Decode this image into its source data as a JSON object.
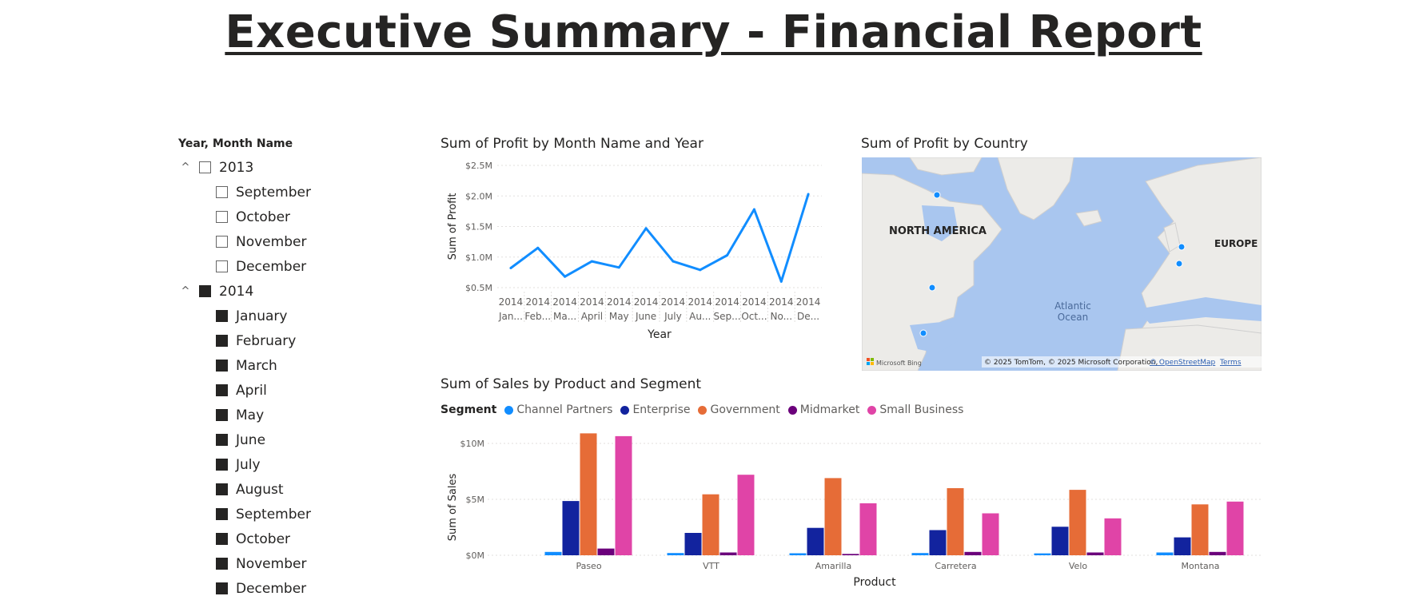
{
  "page": {
    "title": "Executive Summary - Financial Report"
  },
  "slicer": {
    "header": "Year, Month Name",
    "groups": [
      {
        "year": "2013",
        "checked": false,
        "months": [
          "September",
          "October",
          "November",
          "December"
        ]
      },
      {
        "year": "2014",
        "checked": true,
        "months": [
          "January",
          "February",
          "March",
          "April",
          "May",
          "June",
          "July",
          "August",
          "September",
          "October",
          "November",
          "December"
        ]
      }
    ]
  },
  "line_chart": {
    "title": "Sum of Profit by Month Name and Year",
    "xlabel": "Year",
    "ylabel": "Sum of Profit",
    "color": "#118DFF"
  },
  "map_visual": {
    "title": "Sum of Profit by Country",
    "labels": {
      "na": "NORTH AMERICA",
      "eu": "EUROPE",
      "ocean1": "Atlantic",
      "ocean2": "Ocean"
    },
    "brand": "Microsoft Bing",
    "attribution": "© 2025 TomTom, © 2025 Microsoft Corporation,",
    "osm": "© OpenStreetMap",
    "terms": "Terms",
    "marker_color": "#118DFF"
  },
  "bar_chart": {
    "title": "Sum of Sales by Product and Segment",
    "legend_title": "Segment",
    "xlabel": "Product",
    "ylabel": "Sum of Sales"
  },
  "chart_data": [
    {
      "type": "line",
      "title": "Sum of Profit by Month Name and Year",
      "xlabel": "Year",
      "ylabel": "Sum of Profit",
      "x_year": [
        "2014",
        "2014",
        "2014",
        "2014",
        "2014",
        "2014",
        "2014",
        "2014",
        "2014",
        "2014",
        "2014",
        "2014"
      ],
      "x_month": [
        "Jan...",
        "Feb...",
        "Ma...",
        "April",
        "May",
        "June",
        "July",
        "Au...",
        "Sep...",
        "Oct...",
        "No...",
        "De..."
      ],
      "values": [
        0.82,
        1.15,
        0.68,
        0.93,
        0.83,
        1.47,
        0.93,
        0.79,
        1.03,
        1.78,
        0.6,
        2.03
      ],
      "ylim": [
        0.5,
        2.5
      ],
      "yticks": [
        0.5,
        1.0,
        1.5,
        2.0,
        2.5
      ],
      "ytick_labels": [
        "$0.5M",
        "$1.0M",
        "$1.5M",
        "$2.0M",
        "$2.5M"
      ],
      "grid": true
    },
    {
      "type": "bar",
      "title": "Sum of Sales by Product and Segment",
      "xlabel": "Product",
      "ylabel": "Sum of Sales",
      "categories": [
        "Paseo",
        "VTT",
        "Amarilla",
        "Carretera",
        "Velo",
        "Montana"
      ],
      "series": [
        {
          "name": "Channel Partners",
          "color": "#118DFF",
          "values": [
            0.3,
            0.2,
            0.18,
            0.2,
            0.17,
            0.25
          ]
        },
        {
          "name": "Enterprise",
          "color": "#12239E",
          "values": [
            4.85,
            2.0,
            2.45,
            2.25,
            2.55,
            1.6
          ]
        },
        {
          "name": "Government",
          "color": "#E66C37",
          "values": [
            10.9,
            5.45,
            6.9,
            6.0,
            5.85,
            4.55
          ]
        },
        {
          "name": "Midmarket",
          "color": "#6B007B",
          "values": [
            0.6,
            0.25,
            0.12,
            0.3,
            0.25,
            0.3
          ]
        },
        {
          "name": "Small Business",
          "color": "#E044A7",
          "values": [
            10.65,
            7.2,
            4.65,
            3.75,
            3.3,
            4.8
          ]
        }
      ],
      "ylim": [
        0,
        10
      ],
      "yticks": [
        0,
        5,
        10
      ],
      "ytick_labels": [
        "$0M",
        "$5M",
        "$10M"
      ],
      "legend": "top-left",
      "grid": true
    }
  ]
}
